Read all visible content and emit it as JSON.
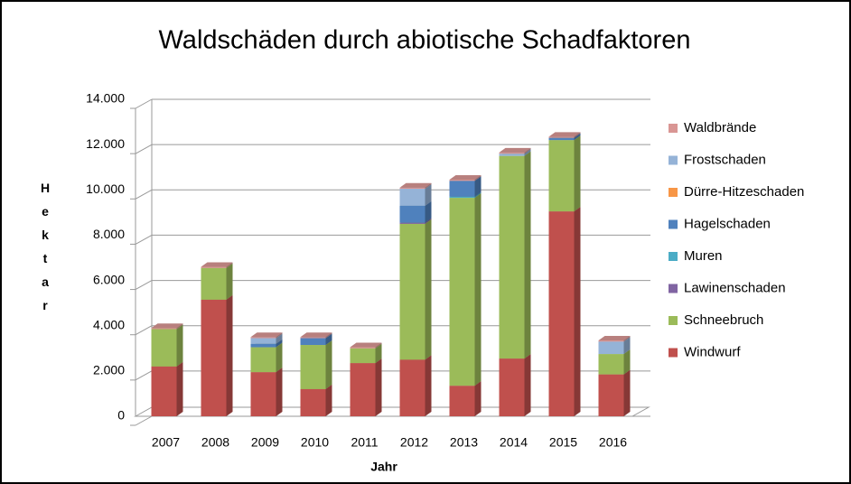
{
  "chart_data": {
    "type": "bar",
    "stacked": true,
    "title": "Waldschäden durch abiotische Schadfaktoren",
    "x_label": "Jahr",
    "y_label": "Hektar",
    "categories": [
      "2007",
      "2008",
      "2009",
      "2010",
      "2011",
      "2012",
      "2013",
      "2014",
      "2015",
      "2016"
    ],
    "series": [
      {
        "name": "Windwurf",
        "color": "#c0504d",
        "values": [
          2200,
          5150,
          1950,
          1200,
          2350,
          2500,
          1350,
          2550,
          9050,
          1850
        ]
      },
      {
        "name": "Schneebruch",
        "color": "#9bbb59",
        "values": [
          1650,
          1400,
          1100,
          1950,
          650,
          6000,
          8300,
          8950,
          3150,
          900
        ]
      },
      {
        "name": "Lawinenschaden",
        "color": "#8064a2",
        "values": [
          0,
          0,
          0,
          0,
          0,
          50,
          0,
          0,
          0,
          0
        ]
      },
      {
        "name": "Muren",
        "color": "#4bacc6",
        "values": [
          0,
          0,
          0,
          0,
          0,
          0,
          50,
          0,
          0,
          0
        ]
      },
      {
        "name": "Hagelschaden",
        "color": "#4f81bd",
        "values": [
          0,
          0,
          150,
          300,
          0,
          750,
          700,
          0,
          100,
          0
        ]
      },
      {
        "name": "Dürre-Hitzeschaden",
        "color": "#f79646",
        "values": [
          0,
          0,
          0,
          0,
          0,
          0,
          0,
          0,
          0,
          0
        ]
      },
      {
        "name": "Frostschaden",
        "color": "#95b3d7",
        "values": [
          0,
          0,
          250,
          0,
          0,
          750,
          0,
          100,
          0,
          550
        ]
      },
      {
        "name": "Waldbrände",
        "color": "#d99694",
        "values": [
          50,
          50,
          50,
          50,
          50,
          50,
          50,
          50,
          50,
          50
        ]
      }
    ],
    "ylim": [
      0,
      14000
    ],
    "yticks": [
      0,
      {
        "value": 2000,
        "label": "2.000"
      },
      {
        "value": 4000,
        "label": "4.000"
      },
      {
        "value": 6000,
        "label": "6.000"
      },
      {
        "value": 8000,
        "label": "8.000"
      },
      {
        "value": 10000,
        "label": "10.000"
      },
      {
        "value": 12000,
        "label": "12.000"
      },
      {
        "value": 14000,
        "label": "14.000"
      }
    ],
    "grid": true,
    "legend": "right"
  }
}
